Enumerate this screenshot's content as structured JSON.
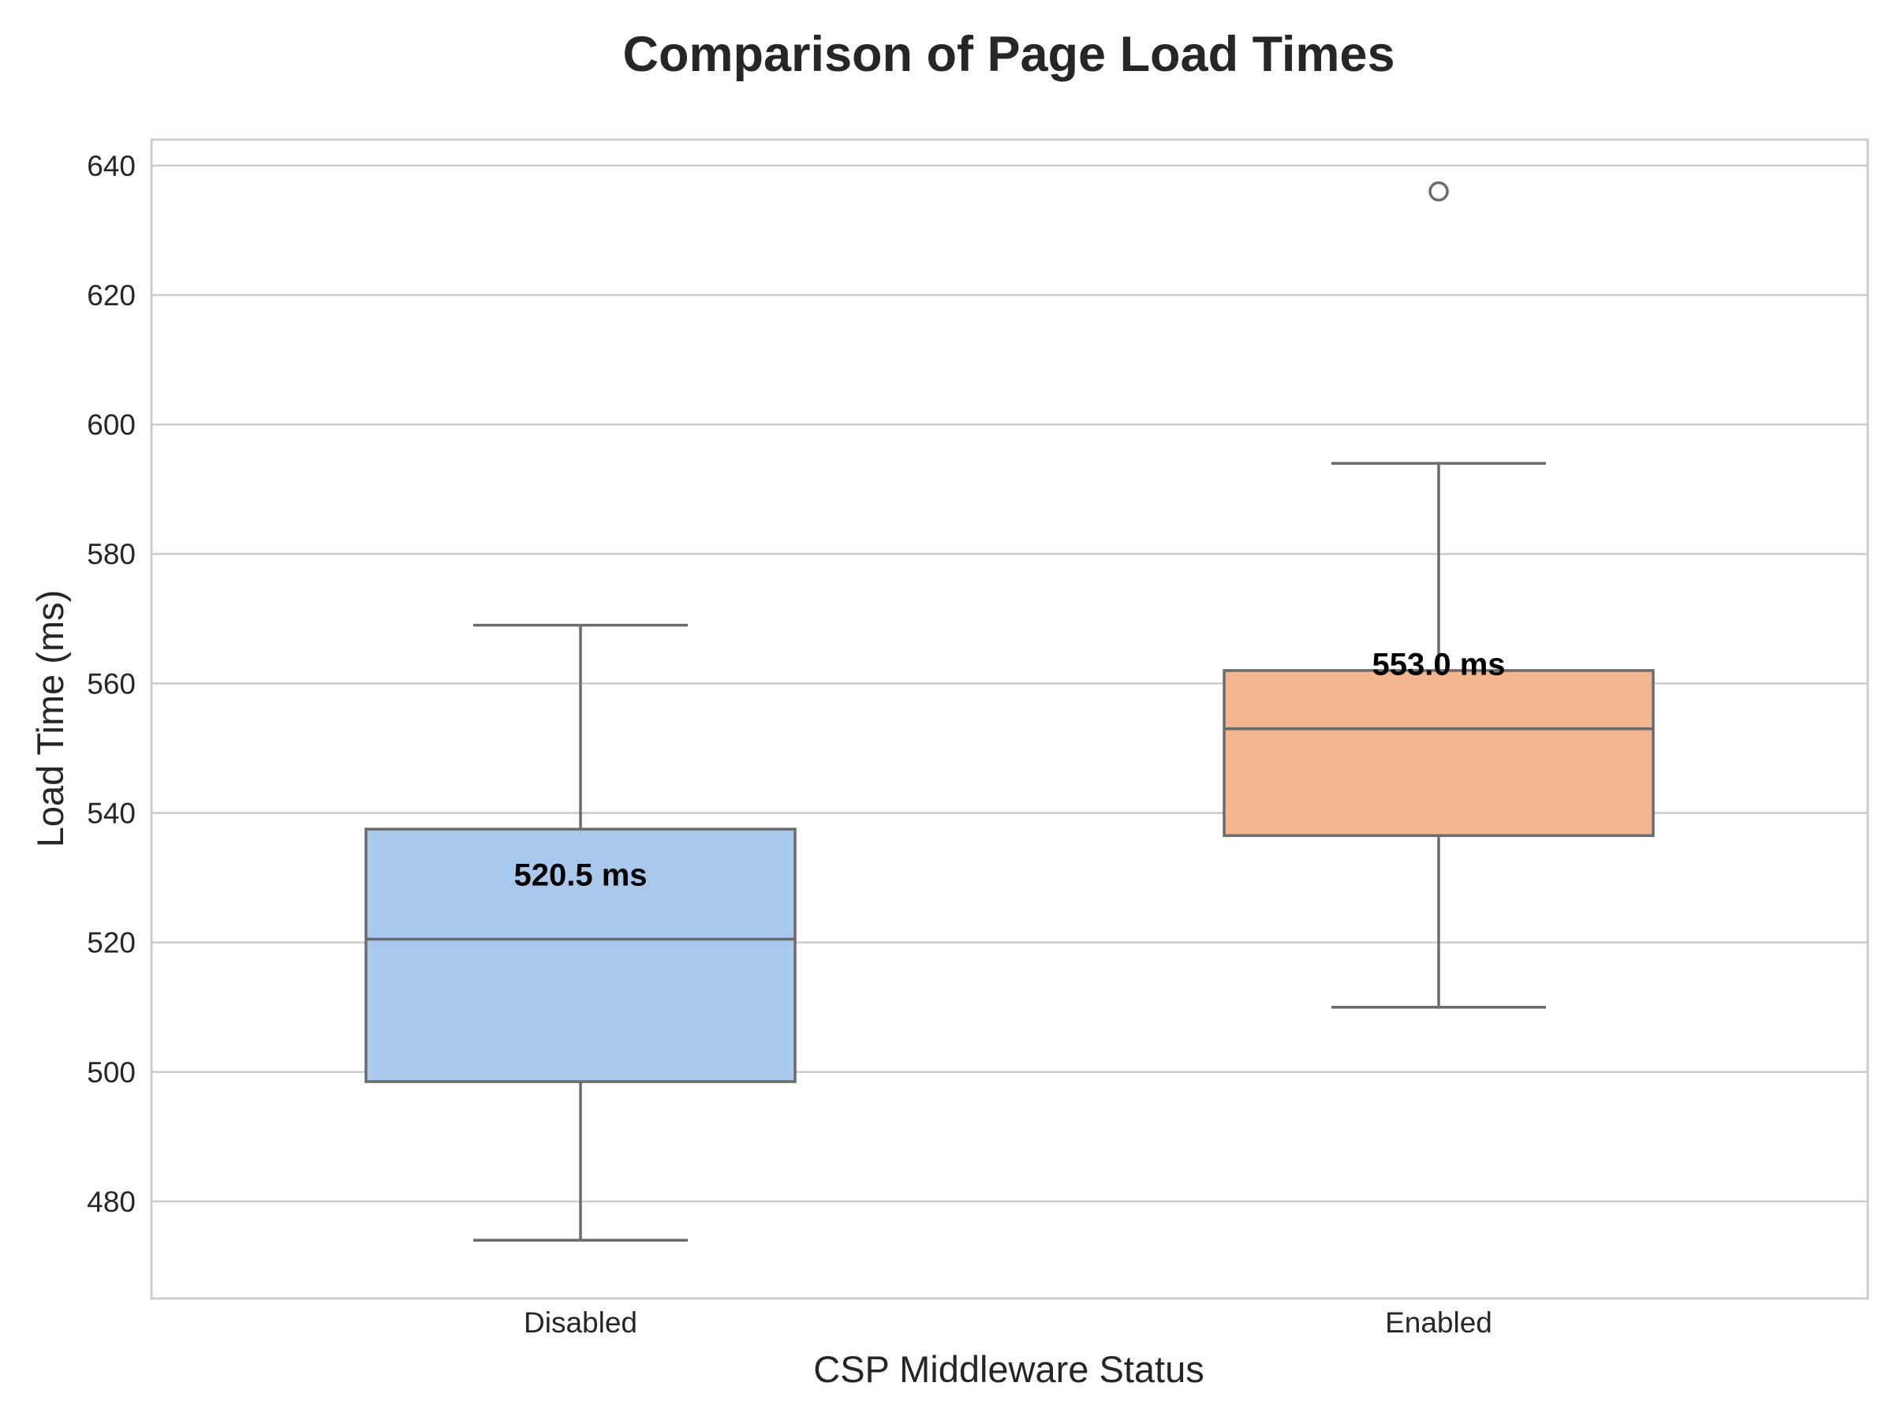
{
  "chart_data": {
    "type": "box",
    "title": "Comparison of Page Load Times",
    "xlabel": "CSP Middleware Status",
    "ylabel": "Load Time (ms)",
    "ylim": [
      465,
      644
    ],
    "yticks": [
      480,
      500,
      520,
      540,
      560,
      580,
      600,
      620,
      640
    ],
    "grid": true,
    "categories": [
      "Disabled",
      "Enabled"
    ],
    "boxes": [
      {
        "category": "Disabled",
        "whisker_low": 474,
        "q1": 498.5,
        "median": 520.5,
        "q3": 537.5,
        "whisker_high": 569,
        "outliers": [],
        "color": "#a8c8ec",
        "median_label": "520.5 ms"
      },
      {
        "category": "Enabled",
        "whisker_low": 510,
        "q1": 536.5,
        "median": 553.0,
        "q3": 562,
        "whisker_high": 594,
        "outliers": [
          636
        ],
        "color": "#f1b690",
        "median_label": "553.0 ms"
      }
    ]
  }
}
